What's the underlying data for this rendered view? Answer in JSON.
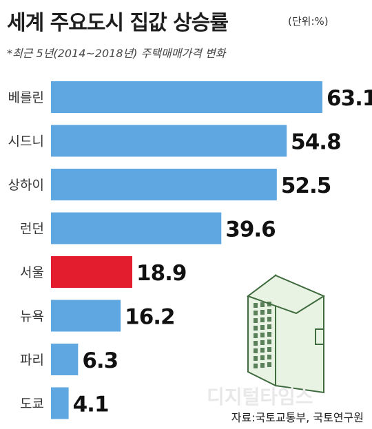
{
  "header": {
    "title": "세계 주요도시 집값 상승률",
    "unit": "(단위:%)",
    "subtitle": "*최근 5년(2014~2018년) 주택매매가격 변화"
  },
  "footer": {
    "source": "자료:국토교통부, 국토연구원",
    "watermark": "디지털타임스"
  },
  "colors": {
    "bar_default": "#5ea7e0",
    "bar_highlight": "#e31d2e",
    "building_fill": "#e9f3e4",
    "building_stroke": "#3f6b3f"
  },
  "chart_data": {
    "type": "bar",
    "orientation": "horizontal",
    "categories": [
      "베를린",
      "시드니",
      "상하이",
      "런던",
      "서울",
      "뉴욕",
      "파리",
      "도쿄"
    ],
    "values": [
      63.1,
      54.8,
      52.5,
      39.6,
      18.9,
      16.2,
      6.3,
      4.1
    ],
    "data_labels": [
      "63.1",
      "54.8",
      "52.5",
      "39.6",
      "18.9",
      "16.2",
      "6.3",
      "4.1"
    ],
    "highlight": "서울",
    "xlim": [
      0,
      63.1
    ],
    "grid": false,
    "legend": "none"
  }
}
